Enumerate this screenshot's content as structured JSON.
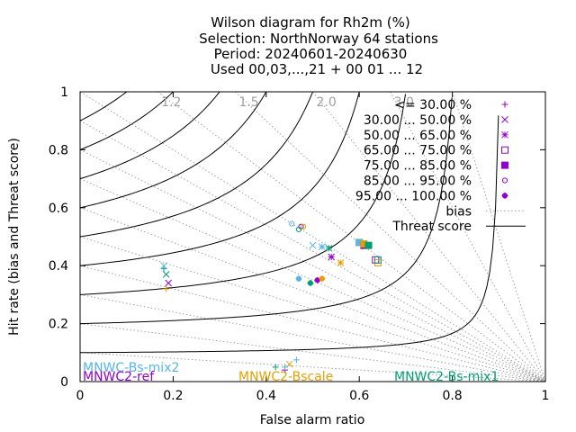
{
  "chart_data": {
    "type": "scatter",
    "title_lines": [
      "Wilson diagram  for Rh2m (%)",
      "Selection: NorthNorway      64 stations",
      "Period: 20240601-20240630",
      "Used 00,03,...,21 + 00 01 ... 12"
    ],
    "xlabel": "False alarm ratio",
    "ylabel": "Hit rate (bias and Threat score)",
    "xlim": [
      0,
      1
    ],
    "ylim": [
      0,
      1
    ],
    "x_ticks": [
      "0",
      "0.2",
      "0.4",
      "0.6",
      "0.8",
      "1"
    ],
    "y_ticks": [
      "0",
      "0.2",
      "0.4",
      "0.6",
      "0.8",
      "1"
    ],
    "bias_values": [
      1.2,
      1.5,
      2.0,
      3.0
    ],
    "bias_labels": [
      "1.2",
      "1.5",
      "2.0",
      "3.0"
    ],
    "threat_scores": [
      0.1,
      0.2,
      0.3,
      0.4,
      0.5,
      0.6,
      0.7,
      0.8,
      0.9
    ],
    "classes": [
      {
        "name": "<= 30.00 %",
        "marker": "plus"
      },
      {
        "name": "30.00 ... 50.00 %",
        "marker": "cross"
      },
      {
        "name": "50.00 ... 65.00 %",
        "marker": "star"
      },
      {
        "name": "65.00 ... 75.00 %",
        "marker": "box"
      },
      {
        "name": "75.00 ... 85.00 %",
        "marker": "fbox"
      },
      {
        "name": "85.00 ... 95.00 %",
        "marker": "circle"
      },
      {
        "name": "95.00 ... 100.00 %",
        "marker": "fcircle"
      }
    ],
    "legend_bias": "bias",
    "legend_threat": "Threat score",
    "legend_position": "top-right",
    "series": [
      {
        "name": "MNWC-Bs-mix2",
        "color": "#56b4e9",
        "points": [
          {
            "class": 0,
            "x": 0.465,
            "y": 0.075
          },
          {
            "class": 1,
            "x": 0.5,
            "y": 0.47
          },
          {
            "class": 2,
            "x": 0.52,
            "y": 0.465
          },
          {
            "class": 3,
            "x": 0.6,
            "y": 0.48
          },
          {
            "class": 4,
            "x": 0.6,
            "y": 0.48
          },
          {
            "class": 5,
            "x": 0.455,
            "y": 0.545
          },
          {
            "class": 6,
            "x": 0.47,
            "y": 0.355
          }
        ]
      },
      {
        "name": "MNWC2-ref",
        "color": "#9400d3",
        "points": [
          {
            "class": 0,
            "x": 0.44,
            "y": 0.04
          },
          {
            "class": 1,
            "x": 0.19,
            "y": 0.34
          },
          {
            "class": 2,
            "x": 0.54,
            "y": 0.43
          },
          {
            "class": 3,
            "x": 0.635,
            "y": 0.42
          },
          {
            "class": 4,
            "x": 0.61,
            "y": 0.47
          },
          {
            "class": 5,
            "x": 0.475,
            "y": 0.535
          },
          {
            "class": 6,
            "x": 0.51,
            "y": 0.35
          }
        ]
      },
      {
        "name": "MNWC2-Bscale",
        "color": "#e69f00",
        "points": [
          {
            "class": 0,
            "x": 0.185,
            "y": 0.32
          },
          {
            "class": 1,
            "x": 0.45,
            "y": 0.06
          },
          {
            "class": 2,
            "x": 0.56,
            "y": 0.41
          },
          {
            "class": 3,
            "x": 0.64,
            "y": 0.41
          },
          {
            "class": 4,
            "x": 0.61,
            "y": 0.475
          },
          {
            "class": 5,
            "x": 0.48,
            "y": 0.535
          },
          {
            "class": 6,
            "x": 0.52,
            "y": 0.355
          }
        ]
      },
      {
        "name": "MNWC2-Bs-mix1",
        "color": "#009e73",
        "points": [
          {
            "class": 0,
            "x": 0.18,
            "y": 0.39
          },
          {
            "class": 1,
            "x": 0.185,
            "y": 0.37
          },
          {
            "class": 2,
            "x": 0.535,
            "y": 0.46
          },
          {
            "class": 3,
            "x": 0.64,
            "y": 0.42
          },
          {
            "class": 4,
            "x": 0.62,
            "y": 0.47
          },
          {
            "class": 5,
            "x": 0.47,
            "y": 0.525
          },
          {
            "class": 6,
            "x": 0.495,
            "y": 0.34
          }
        ]
      }
    ],
    "extra_points": [
      {
        "series": 0,
        "class": 1,
        "x": 0.18,
        "y": 0.4
      },
      {
        "series": 0,
        "class": 0,
        "x": 0.44,
        "y": 0.05
      },
      {
        "series": 3,
        "class": 0,
        "x": 0.42,
        "y": 0.05
      }
    ],
    "model_labels": [
      {
        "series": 0,
        "text": "MNWC-Bs-mix2"
      },
      {
        "series": 1,
        "text": "MNWC2-ref"
      },
      {
        "series": 2,
        "text": "MNWC2-Bscale"
      },
      {
        "series": 3,
        "text": "MNWC2-Bs-mix1"
      }
    ]
  }
}
